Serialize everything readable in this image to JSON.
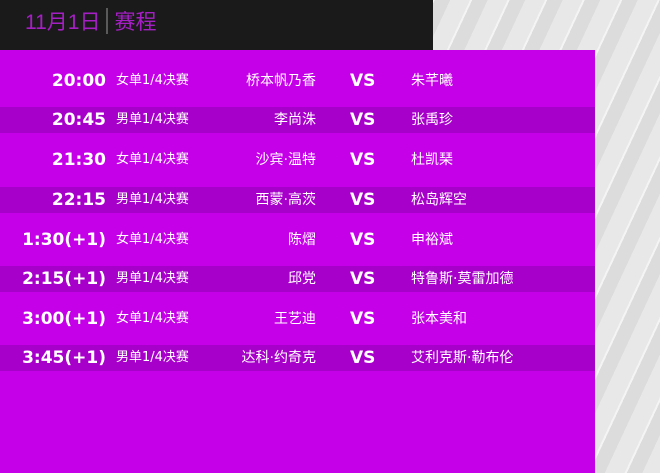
{
  "header": {
    "date": "11月1日",
    "title": "赛程"
  },
  "colors": {
    "panel": "#c500e9",
    "alt_row": "#a800cb",
    "title": "#a51fc4",
    "header_bg": "#1b1a1b"
  },
  "vs_label": "VS",
  "matches": [
    {
      "time": "20:00",
      "event": "女单1/4决赛",
      "player1": "桥本帆乃香",
      "player2": "朱芊曦"
    },
    {
      "time": "20:45",
      "event": "男单1/4决赛",
      "player1": "李尚洙",
      "player2": "张禹珍"
    },
    {
      "time": "21:30",
      "event": "女单1/4决赛",
      "player1": "沙宾·温特",
      "player2": "杜凯琹"
    },
    {
      "time": "22:15",
      "event": "男单1/4决赛",
      "player1": "西蒙·高茨",
      "player2": "松岛辉空"
    },
    {
      "time": "1:30(+1)",
      "event": "女单1/4决赛",
      "player1": "陈熠",
      "player2": "申裕斌"
    },
    {
      "time": "2:15(+1)",
      "event": "男单1/4决赛",
      "player1": "邱党",
      "player2": "特鲁斯·莫雷加德"
    },
    {
      "time": "3:00(+1)",
      "event": "女单1/4决赛",
      "player1": "王艺迪",
      "player2": "张本美和"
    },
    {
      "time": "3:45(+1)",
      "event": "男单1/4决赛",
      "player1": "达科·约奇克",
      "player2": "艾利克斯·勒布伦"
    }
  ]
}
